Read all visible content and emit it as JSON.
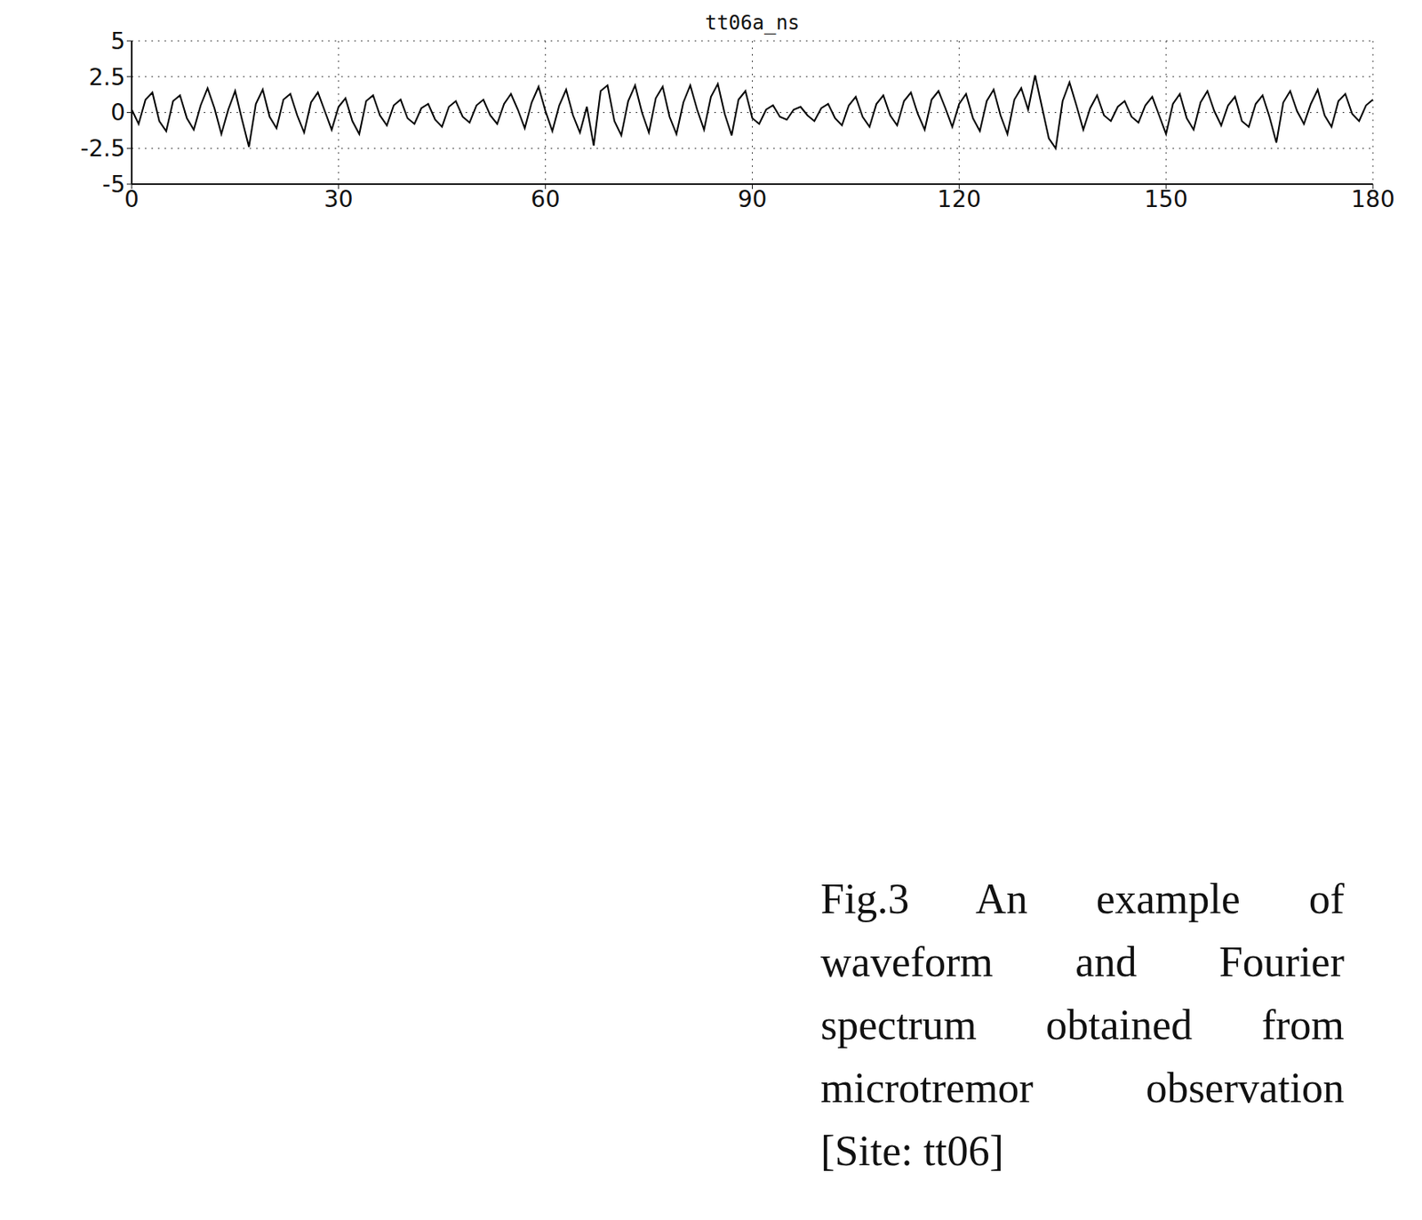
{
  "chart_data": {
    "type": "line",
    "title": "tt06a_ns",
    "color": "#000000",
    "grid": true,
    "xlim": [
      0,
      180
    ],
    "xticks": [
      0,
      30,
      60,
      90,
      120,
      150,
      180
    ],
    "ylim": [
      -5,
      5
    ],
    "yticks": [
      -5,
      -2.5,
      0,
      2.5,
      5
    ],
    "x": [
      0,
      1,
      2,
      3,
      4,
      5,
      6,
      7,
      8,
      9,
      10,
      11,
      12,
      13,
      14,
      15,
      16,
      17,
      18,
      19,
      20,
      21,
      22,
      23,
      24,
      25,
      26,
      27,
      28,
      29,
      30,
      31,
      32,
      33,
      34,
      35,
      36,
      37,
      38,
      39,
      40,
      41,
      42,
      43,
      44,
      45,
      46,
      47,
      48,
      49,
      50,
      51,
      52,
      53,
      54,
      55,
      56,
      57,
      58,
      59,
      60,
      61,
      62,
      63,
      64,
      65,
      66,
      67,
      68,
      69,
      70,
      71,
      72,
      73,
      74,
      75,
      76,
      77,
      78,
      79,
      80,
      81,
      82,
      83,
      84,
      85,
      86,
      87,
      88,
      89,
      90,
      91,
      92,
      93,
      94,
      95,
      96,
      97,
      98,
      99,
      100,
      101,
      102,
      103,
      104,
      105,
      106,
      107,
      108,
      109,
      110,
      111,
      112,
      113,
      114,
      115,
      116,
      117,
      118,
      119,
      120,
      121,
      122,
      123,
      124,
      125,
      126,
      127,
      128,
      129,
      130,
      131,
      132,
      133,
      134,
      135,
      136,
      137,
      138,
      139,
      140,
      141,
      142,
      143,
      144,
      145,
      146,
      147,
      148,
      149,
      150,
      151,
      152,
      153,
      154,
      155,
      156,
      157,
      158,
      159,
      160,
      161,
      162,
      163,
      164,
      165,
      166,
      167,
      168,
      169,
      170,
      171,
      172,
      173,
      174,
      175,
      176,
      177,
      178,
      179,
      180
    ],
    "values": [
      0.2,
      -0.8,
      0.9,
      1.4,
      -0.6,
      -1.3,
      0.8,
      1.2,
      -0.4,
      -1.2,
      0.5,
      1.7,
      0.3,
      -1.5,
      0.2,
      1.5,
      -0.5,
      -2.4,
      0.6,
      1.6,
      -0.3,
      -1.1,
      0.9,
      1.3,
      -0.2,
      -1.4,
      0.7,
      1.4,
      0.1,
      -1.2,
      0.4,
      1.0,
      -0.6,
      -1.5,
      0.8,
      1.2,
      -0.2,
      -0.9,
      0.5,
      0.9,
      -0.4,
      -0.8,
      0.3,
      0.6,
      -0.5,
      -1.0,
      0.4,
      0.8,
      -0.3,
      -0.7,
      0.5,
      0.9,
      -0.2,
      -0.8,
      0.6,
      1.3,
      0.2,
      -1.1,
      0.7,
      1.8,
      0.1,
      -1.3,
      0.5,
      1.6,
      -0.2,
      -1.4,
      0.4,
      -2.3,
      1.5,
      1.9,
      -0.6,
      -1.6,
      0.8,
      1.9,
      0.0,
      -1.4,
      1.0,
      1.8,
      -0.3,
      -1.5,
      0.7,
      1.9,
      0.2,
      -1.2,
      1.1,
      2.0,
      -0.1,
      -1.6,
      0.9,
      1.5,
      -0.4,
      -0.8,
      0.2,
      0.5,
      -0.3,
      -0.5,
      0.2,
      0.4,
      -0.2,
      -0.6,
      0.3,
      0.6,
      -0.4,
      -0.9,
      0.5,
      1.1,
      -0.3,
      -1.0,
      0.6,
      1.2,
      -0.2,
      -0.9,
      0.8,
      1.4,
      -0.1,
      -1.2,
      0.9,
      1.5,
      0.3,
      -1.0,
      0.6,
      1.3,
      -0.4,
      -1.3,
      0.8,
      1.6,
      -0.2,
      -1.5,
      0.9,
      1.7,
      0.2,
      2.6,
      0.4,
      -1.8,
      -2.5,
      0.8,
      2.1,
      0.5,
      -1.2,
      0.3,
      1.2,
      -0.2,
      -0.6,
      0.4,
      0.8,
      -0.3,
      -0.7,
      0.5,
      1.1,
      -0.2,
      -1.5,
      0.6,
      1.3,
      -0.4,
      -1.2,
      0.7,
      1.5,
      0.1,
      -0.9,
      0.5,
      1.1,
      -0.6,
      -1.0,
      0.6,
      1.2,
      -0.3,
      -2.1,
      0.7,
      1.5,
      0.1,
      -0.8,
      0.6,
      1.6,
      -0.2,
      -1.0,
      0.8,
      1.3,
      -0.1,
      -0.6,
      0.5,
      0.9
    ]
  },
  "caption": "Fig.3 An example of waveform and Fourier spectrum obtained from microtremor observation [Site: tt06]"
}
